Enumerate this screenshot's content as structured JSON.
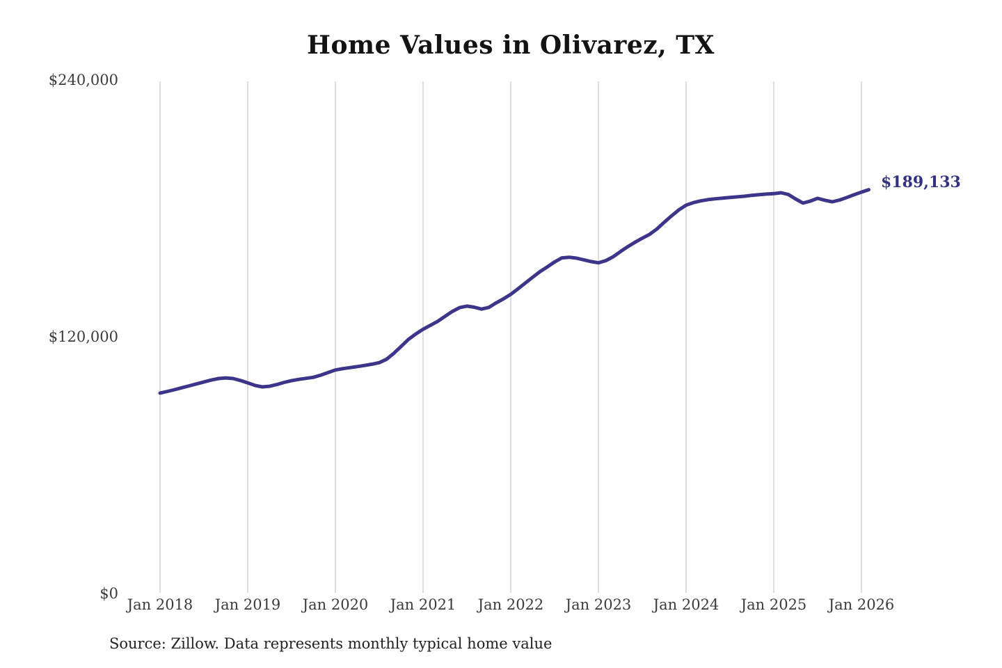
{
  "title": "Home Values in Olivarez, TX",
  "source_note": "Source: Zillow. Data represents monthly typical home value",
  "annotation": {
    "label": "$189,133",
    "value": 189133
  },
  "colors": {
    "line": "#3d3589",
    "annotation_text": "#32327f",
    "gridline": "#cbcbcb",
    "title_text": "#131313",
    "tick_text": "#3b3b3b",
    "background": "#ffffff"
  },
  "chart_data": {
    "type": "line",
    "title": "Home Values in Olivarez, TX",
    "xlabel": "",
    "ylabel": "",
    "ylim": [
      0,
      240000
    ],
    "grid": "vertical-only",
    "legend": "none",
    "y_ticks": [
      {
        "label": "$240,000",
        "value": 240000
      },
      {
        "label": "$120,000",
        "value": 120000
      },
      {
        "label": "$0",
        "value": 0
      }
    ],
    "x_tick_labels": [
      "Jan 2018",
      "Jan 2019",
      "Jan 2020",
      "Jan 2021",
      "Jan 2022",
      "Jan 2023",
      "Jan 2024",
      "Jan 2025",
      "Jan 2026"
    ],
    "last_point_label": "$189,133",
    "series": [
      {
        "name": "Typical home value",
        "months": [
          "2018-01",
          "2018-02",
          "2018-03",
          "2018-04",
          "2018-05",
          "2018-06",
          "2018-07",
          "2018-08",
          "2018-09",
          "2018-10",
          "2018-11",
          "2018-12",
          "2019-01",
          "2019-02",
          "2019-03",
          "2019-04",
          "2019-05",
          "2019-06",
          "2019-07",
          "2019-08",
          "2019-09",
          "2019-10",
          "2019-11",
          "2019-12",
          "2020-01",
          "2020-02",
          "2020-03",
          "2020-04",
          "2020-05",
          "2020-06",
          "2020-07",
          "2020-08",
          "2020-09",
          "2020-10",
          "2020-11",
          "2020-12",
          "2021-01",
          "2021-02",
          "2021-03",
          "2021-04",
          "2021-05",
          "2021-06",
          "2021-07",
          "2021-08",
          "2021-09",
          "2021-10",
          "2021-11",
          "2021-12",
          "2022-01",
          "2022-02",
          "2022-03",
          "2022-04",
          "2022-05",
          "2022-06",
          "2022-07",
          "2022-08",
          "2022-09",
          "2022-10",
          "2022-11",
          "2022-12",
          "2023-01",
          "2023-02",
          "2023-03",
          "2023-04",
          "2023-05",
          "2023-06",
          "2023-07",
          "2023-08",
          "2023-09",
          "2023-10",
          "2023-11",
          "2023-12",
          "2024-01",
          "2024-02",
          "2024-03",
          "2024-04",
          "2024-05",
          "2024-06",
          "2024-07",
          "2024-08",
          "2024-09",
          "2024-10",
          "2024-11",
          "2024-12",
          "2025-01",
          "2025-02",
          "2025-03",
          "2025-04",
          "2025-05",
          "2025-06",
          "2025-07",
          "2025-08",
          "2025-09",
          "2025-10",
          "2025-11",
          "2025-12",
          "2026-01",
          "2026-02"
        ],
        "values": [
          94200,
          95000,
          95800,
          96700,
          97600,
          98500,
          99400,
          100300,
          101000,
          101300,
          101000,
          100100,
          99000,
          97800,
          97100,
          97400,
          98200,
          99200,
          100000,
          100600,
          101100,
          101600,
          102600,
          103800,
          105000,
          105600,
          106100,
          106600,
          107100,
          107700,
          108400,
          110000,
          112800,
          116000,
          119300,
          121800,
          124000,
          125800,
          127700,
          130000,
          132300,
          134100,
          134800,
          134300,
          133400,
          134200,
          136300,
          138200,
          140300,
          142900,
          145600,
          148300,
          150900,
          153100,
          155400,
          157300,
          157600,
          157200,
          156400,
          155600,
          155000,
          156000,
          157800,
          160200,
          162500,
          164600,
          166500,
          168300,
          170800,
          173900,
          176900,
          179700,
          181900,
          183100,
          183900,
          184500,
          184900,
          185200,
          185500,
          185800,
          186100,
          186500,
          186800,
          187100,
          187300,
          187700,
          186900,
          184800,
          182900,
          183800,
          185100,
          184200,
          183500,
          184300,
          185500,
          186800,
          188000,
          189133
        ]
      }
    ]
  }
}
